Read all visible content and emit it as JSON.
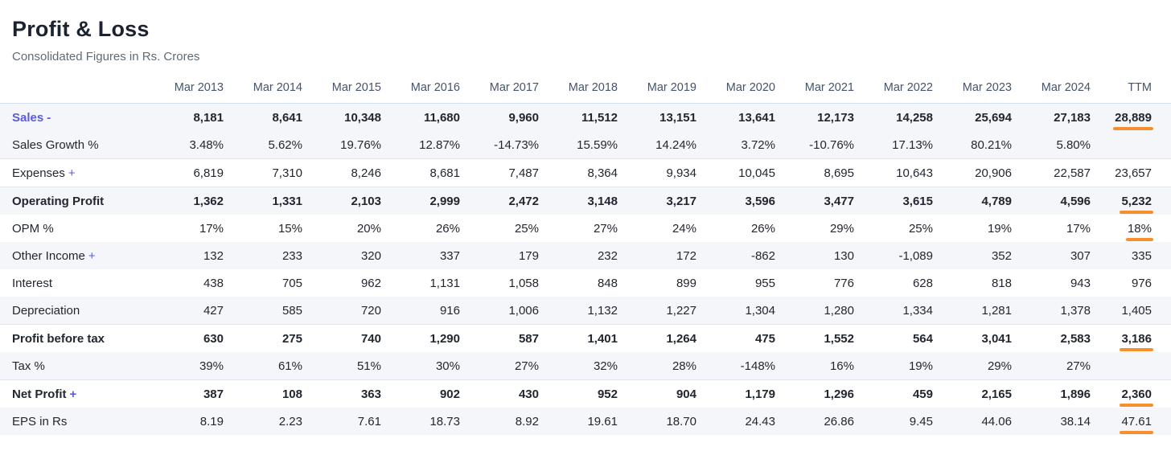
{
  "header": {
    "title": "Profit & Loss",
    "subtitle": "Consolidated Figures in Rs. Crores"
  },
  "colors": {
    "accent_link": "#5a5ce0",
    "underline": "#f78f2e",
    "stripe": "#f5f6fa"
  },
  "table": {
    "columns": [
      "Mar 2013",
      "Mar 2014",
      "Mar 2015",
      "Mar 2016",
      "Mar 2017",
      "Mar 2018",
      "Mar 2019",
      "Mar 2020",
      "Mar 2021",
      "Mar 2022",
      "Mar 2023",
      "Mar 2024",
      "TTM"
    ],
    "rows": [
      {
        "key": "sales",
        "label": "Sales",
        "suffix": "-",
        "link": true,
        "bold": true,
        "stripe": true,
        "underline_ttm": true,
        "values": [
          "8,181",
          "8,641",
          "10,348",
          "11,680",
          "9,960",
          "11,512",
          "13,151",
          "13,641",
          "12,173",
          "14,258",
          "25,694",
          "27,183",
          "28,889"
        ]
      },
      {
        "key": "sales-growth",
        "label": "Sales Growth %",
        "stripe": true,
        "values": [
          "3.48%",
          "5.62%",
          "19.76%",
          "12.87%",
          "-14.73%",
          "15.59%",
          "14.24%",
          "3.72%",
          "-10.76%",
          "17.13%",
          "80.21%",
          "5.80%",
          ""
        ]
      },
      {
        "key": "expenses",
        "label": "Expenses",
        "suffix": "+",
        "border_top": true,
        "values": [
          "6,819",
          "7,310",
          "8,246",
          "8,681",
          "7,487",
          "8,364",
          "9,934",
          "10,045",
          "8,695",
          "10,643",
          "20,906",
          "22,587",
          "23,657"
        ]
      },
      {
        "key": "operating-profit",
        "label": "Operating Profit",
        "bold": true,
        "stripe": true,
        "border_top": true,
        "underline_ttm": true,
        "values": [
          "1,362",
          "1,331",
          "2,103",
          "2,999",
          "2,472",
          "3,148",
          "3,217",
          "3,596",
          "3,477",
          "3,615",
          "4,789",
          "4,596",
          "5,232"
        ]
      },
      {
        "key": "opm",
        "label": "OPM %",
        "underline_ttm": true,
        "values": [
          "17%",
          "15%",
          "20%",
          "26%",
          "25%",
          "27%",
          "24%",
          "26%",
          "29%",
          "25%",
          "19%",
          "17%",
          "18%"
        ]
      },
      {
        "key": "other-income",
        "label": "Other Income",
        "suffix": "+",
        "stripe": true,
        "values": [
          "132",
          "233",
          "320",
          "337",
          "179",
          "232",
          "172",
          "-862",
          "130",
          "-1,089",
          "352",
          "307",
          "335"
        ]
      },
      {
        "key": "interest",
        "label": "Interest",
        "values": [
          "438",
          "705",
          "962",
          "1,131",
          "1,058",
          "848",
          "899",
          "955",
          "776",
          "628",
          "818",
          "943",
          "976"
        ]
      },
      {
        "key": "depreciation",
        "label": "Depreciation",
        "stripe": true,
        "values": [
          "427",
          "585",
          "720",
          "916",
          "1,006",
          "1,132",
          "1,227",
          "1,304",
          "1,280",
          "1,334",
          "1,281",
          "1,378",
          "1,405"
        ]
      },
      {
        "key": "profit-before-tax",
        "label": "Profit before tax",
        "bold": true,
        "border_top": true,
        "underline_ttm": true,
        "values": [
          "630",
          "275",
          "740",
          "1,290",
          "587",
          "1,401",
          "1,264",
          "475",
          "1,552",
          "564",
          "3,041",
          "2,583",
          "3,186"
        ]
      },
      {
        "key": "tax",
        "label": "Tax %",
        "stripe": true,
        "values": [
          "39%",
          "61%",
          "51%",
          "30%",
          "27%",
          "32%",
          "28%",
          "-148%",
          "16%",
          "19%",
          "29%",
          "27%",
          ""
        ]
      },
      {
        "key": "net-profit",
        "label": "Net Profit",
        "suffix": "+",
        "bold": true,
        "border_top": true,
        "underline_ttm": true,
        "values": [
          "387",
          "108",
          "363",
          "902",
          "430",
          "952",
          "904",
          "1,179",
          "1,296",
          "459",
          "2,165",
          "1,896",
          "2,360"
        ]
      },
      {
        "key": "eps",
        "label": "EPS in Rs",
        "stripe": true,
        "underline_ttm": true,
        "values": [
          "8.19",
          "2.23",
          "7.61",
          "18.73",
          "8.92",
          "19.61",
          "18.70",
          "24.43",
          "26.86",
          "9.45",
          "44.06",
          "38.14",
          "47.61"
        ]
      }
    ]
  }
}
